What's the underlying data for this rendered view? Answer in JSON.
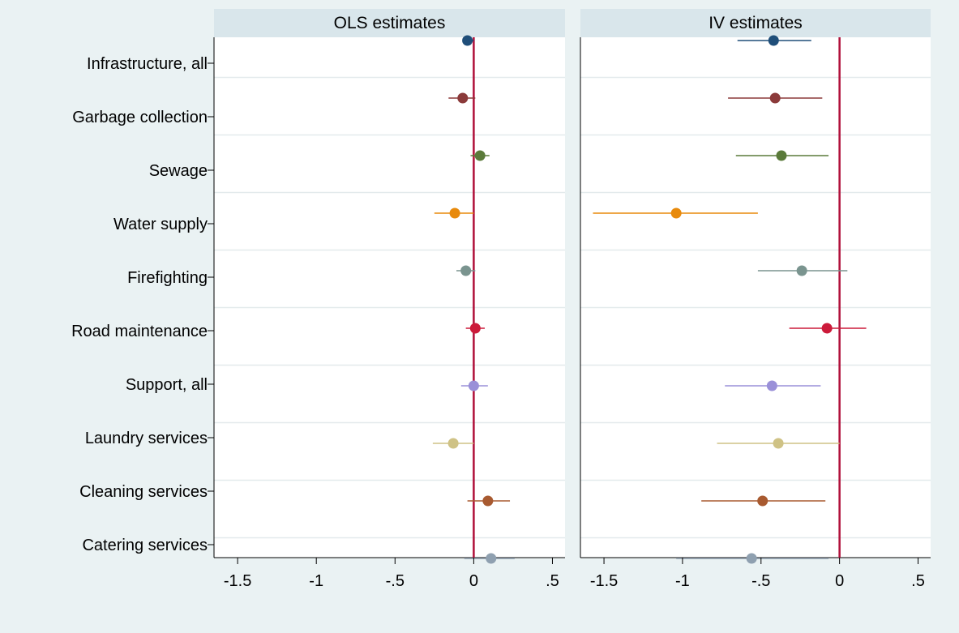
{
  "chart_data": {
    "type": "scatter",
    "description_kind": "coefficient plot with confidence intervals",
    "categories": [
      "Infrastructure, all",
      "Garbage collection",
      "Sewage",
      "Water supply",
      "Firefighting",
      "Road maintenance",
      "Support, all",
      "Laundry services",
      "Cleaning services",
      "Catering services"
    ],
    "colors": [
      "#1f4e79",
      "#8b3a3a",
      "#5a7a3a",
      "#e88a0c",
      "#7a948f",
      "#cc1a3a",
      "#9a90d8",
      "#cfc285",
      "#a85a30",
      "#8fa0b0"
    ],
    "reference_line": {
      "x": 0,
      "color": "#b0103a"
    },
    "xlim": [
      -1.65,
      0.58
    ],
    "xticks": [
      -1.5,
      -1,
      -0.5,
      0,
      0.5
    ],
    "xtick_labels": [
      "-1.5",
      "-1",
      "-.5",
      "0",
      ".5"
    ],
    "panels": [
      {
        "title": "OLS estimates",
        "estimates": [
          -0.04,
          -0.07,
          0.04,
          -0.12,
          -0.05,
          0.01,
          0.0,
          -0.13,
          0.09,
          0.11
        ],
        "ci_low": [
          -0.07,
          -0.16,
          -0.02,
          -0.25,
          -0.11,
          -0.05,
          -0.08,
          -0.26,
          -0.04,
          -0.06
        ],
        "ci_high": [
          0.0,
          0.01,
          0.1,
          0.0,
          0.01,
          0.07,
          0.09,
          0.0,
          0.23,
          0.26
        ]
      },
      {
        "title": "IV estimates",
        "estimates": [
          -0.42,
          -0.41,
          -0.37,
          -1.04,
          -0.24,
          -0.08,
          -0.43,
          -0.39,
          -0.49,
          -0.56
        ],
        "ci_low": [
          -0.65,
          -0.71,
          -0.66,
          -1.57,
          -0.52,
          -0.32,
          -0.73,
          -0.78,
          -0.88,
          -1.04
        ],
        "ci_high": [
          -0.18,
          -0.11,
          -0.07,
          -0.52,
          0.05,
          0.17,
          -0.12,
          0.0,
          -0.09,
          -0.07
        ]
      }
    ]
  }
}
